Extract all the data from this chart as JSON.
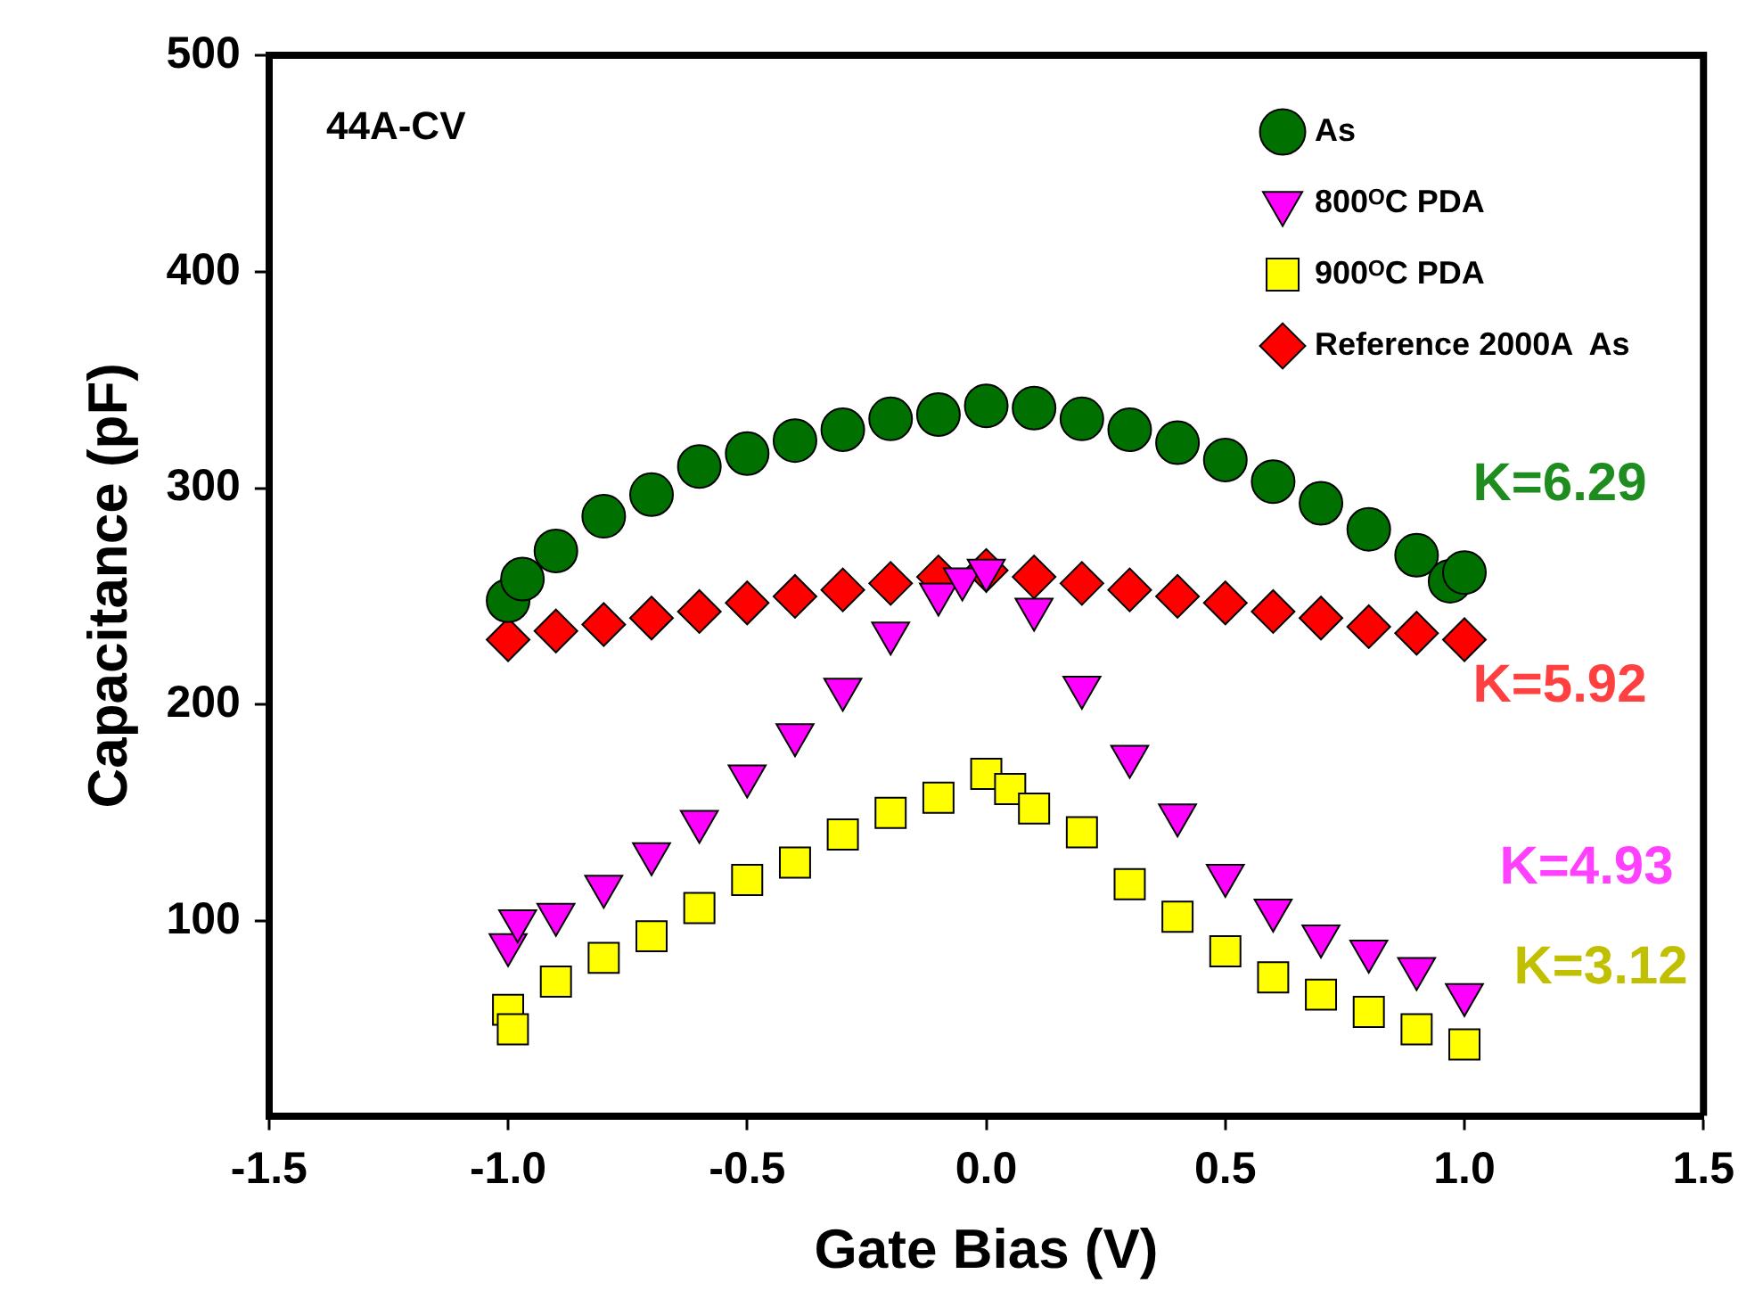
{
  "chart_data": {
    "type": "scatter",
    "xlabel": "Gate Bias (V)",
    "ylabel": "Capacitance (pF)",
    "xlim": [
      -1.5,
      1.5
    ],
    "xticks": [
      -1.5,
      {
        "value": -1,
        "label": "-1.0"
      },
      -0.5,
      {
        "value": 0,
        "label": "0.0"
      },
      0.5,
      {
        "value": 1,
        "label": "1.0"
      },
      1.5
    ],
    "ylim": [
      10,
      500
    ],
    "yticks": [
      100,
      200,
      300,
      400,
      500
    ],
    "grid": false,
    "legend": "top right",
    "series": [
      {
        "name": "As",
        "color": "#007000",
        "marker": "circle",
        "x": [
          -1.0,
          -0.97,
          -0.9,
          -0.8,
          -0.7,
          -0.6,
          -0.5,
          -0.4,
          -0.3,
          -0.2,
          -0.1,
          0,
          0.1,
          0.2,
          0.3,
          0.4,
          0.5,
          0.6,
          0.7,
          0.8,
          0.9,
          0.97,
          1.0
        ],
        "values": [
          248,
          258,
          271,
          287,
          297,
          310,
          316,
          322,
          327,
          332,
          334,
          338,
          337,
          332,
          327,
          321,
          313,
          303,
          293,
          281,
          269,
          257,
          261
        ]
      },
      {
        "name": "800ᴼC PDA",
        "color": "#ff00ff",
        "marker": "triangle",
        "x": [
          -1.0,
          -0.98,
          -0.9,
          -0.8,
          -0.7,
          -0.6,
          -0.5,
          -0.4,
          -0.3,
          -0.2,
          -0.1,
          -0.05,
          0,
          0.1,
          0.2,
          0.3,
          0.4,
          0.5,
          0.6,
          0.7,
          0.8,
          0.9,
          1.0
        ],
        "values": [
          89,
          100,
          103,
          116,
          131,
          146,
          167,
          186,
          207,
          233,
          251,
          258,
          262,
          244,
          208,
          176,
          149,
          121,
          105,
          93,
          86,
          78,
          66
        ]
      },
      {
        "name": "900ᴼC PDA",
        "color": "#ffff00",
        "marker": "square",
        "x": [
          -1.0,
          -0.99,
          -0.9,
          -0.8,
          -0.7,
          -0.6,
          -0.5,
          -0.4,
          -0.3,
          -0.2,
          -0.1,
          0,
          0.05,
          0.1,
          0.2,
          0.3,
          0.4,
          0.5,
          0.6,
          0.7,
          0.8,
          0.9,
          1.0
        ],
        "values": [
          59,
          50,
          72,
          83,
          93,
          106,
          119,
          127,
          140,
          150,
          157,
          168,
          161,
          152,
          141,
          117,
          102,
          86,
          74,
          66,
          58,
          50,
          43
        ]
      },
      {
        "name": "Reference 2000A  As",
        "color": "#ff0000",
        "marker": "diamond",
        "x": [
          -1.0,
          -0.9,
          -0.8,
          -0.7,
          -0.6,
          -0.5,
          -0.4,
          -0.3,
          -0.2,
          -0.1,
          0,
          0.1,
          0.2,
          0.3,
          0.4,
          0.5,
          0.6,
          0.7,
          0.8,
          0.9,
          1.0
        ],
        "values": [
          230,
          234,
          237,
          240,
          243,
          247,
          250,
          253,
          256,
          259,
          262,
          259,
          256,
          253,
          250,
          247,
          243,
          240,
          236,
          233,
          230
        ]
      }
    ],
    "annotations": [
      "44A-CV",
      "K=6.29",
      "K=5.92",
      "K=4.93",
      "K=3.12"
    ]
  }
}
